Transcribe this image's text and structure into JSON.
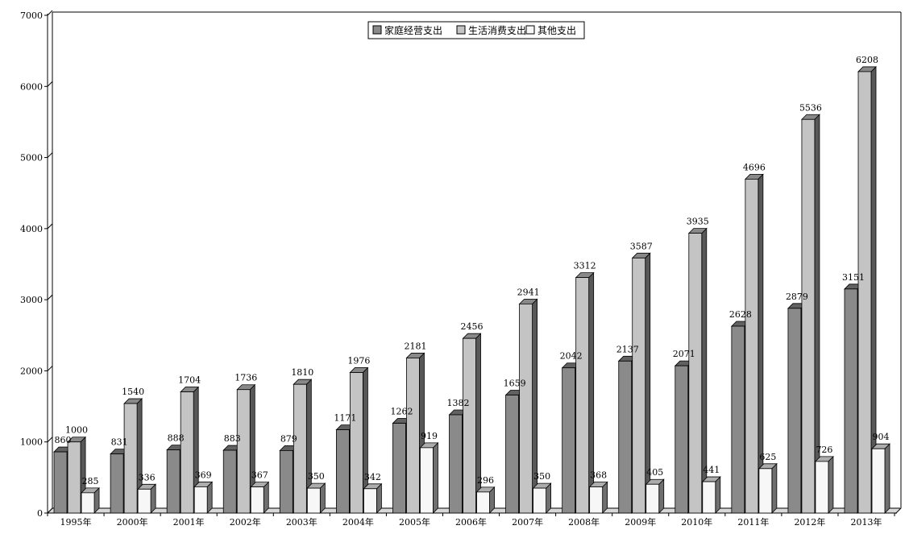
{
  "chart_data": {
    "type": "bar",
    "title": "",
    "xlabel": "",
    "ylabel": "",
    "ylim": [
      0,
      7000
    ],
    "yticks": [
      0,
      1000,
      2000,
      3000,
      4000,
      5000,
      6000,
      7000
    ],
    "grid": false,
    "legend_position": "top-center",
    "style": "3d-columns",
    "categories": [
      "1995年",
      "2000年",
      "2001年",
      "2002年",
      "2003年",
      "2004年",
      "2005年",
      "2006年",
      "2007年",
      "2008年",
      "2009年",
      "2010年",
      "2011年",
      "2012年",
      "2013年"
    ],
    "series": [
      {
        "name": "家庭经营支出",
        "color": "#8a8a8a",
        "values": [
          860,
          831,
          888,
          883,
          879,
          1171,
          1262,
          1382,
          1659,
          2042,
          2137,
          2071,
          2628,
          2879,
          3151
        ]
      },
      {
        "name": "生活消费支出",
        "color": "#c4c4c4",
        "values": [
          1000,
          1540,
          1704,
          1736,
          1810,
          1976,
          2181,
          2456,
          2941,
          3312,
          3587,
          3935,
          4696,
          5536,
          6208
        ]
      },
      {
        "name": "其他支出",
        "color": "#f7f7f7",
        "values": [
          285,
          336,
          369,
          367,
          350,
          342,
          919,
          296,
          350,
          368,
          405,
          441,
          625,
          726,
          904
        ]
      }
    ]
  }
}
